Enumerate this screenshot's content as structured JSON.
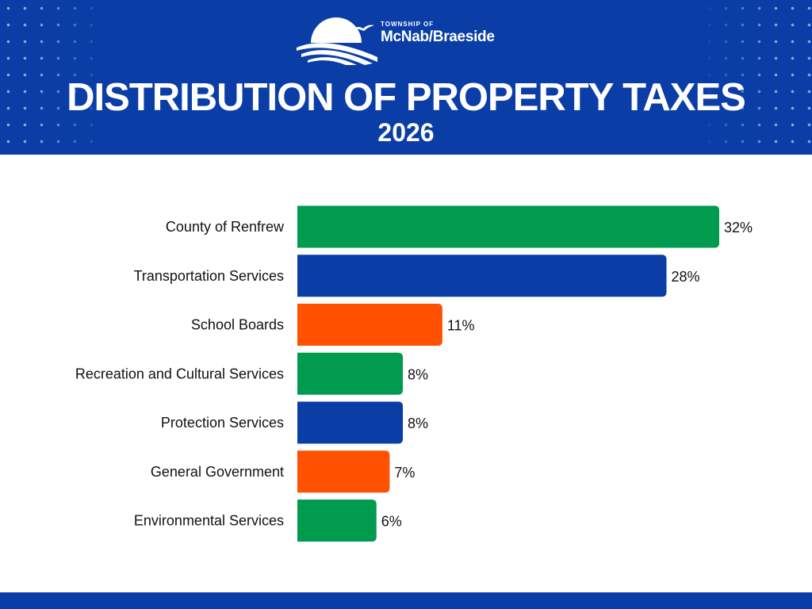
{
  "logo": {
    "small_text": "TOWNSHIP OF",
    "big_text": "McNab/Braeside"
  },
  "header": {
    "title": "DISTRIBUTION OF PROPERTY TAXES",
    "subtitle": "2026"
  },
  "colors": {
    "header_bg": "#0a3ea6",
    "green": "#009b4e",
    "blue": "#0a3ea6",
    "orange": "#ff5100"
  },
  "chart_data": {
    "type": "bar",
    "orientation": "horizontal",
    "title": "DISTRIBUTION OF PROPERTY TAXES",
    "subtitle": "2026",
    "categories": [
      "County of Renfrew",
      "Transportation Services",
      "School Boards",
      "Recreation and Cultural Services",
      "Protection Services",
      "General Government",
      "Environmental Services"
    ],
    "values": [
      32,
      28,
      11,
      8,
      8,
      7,
      6
    ],
    "value_labels": [
      "32%",
      "28%",
      "11%",
      "8%",
      "8%",
      "7%",
      "6%"
    ],
    "bar_colors": [
      "#009b4e",
      "#0a3ea6",
      "#ff5100",
      "#009b4e",
      "#0a3ea6",
      "#ff5100",
      "#009b4e"
    ],
    "unit": "%",
    "xlim": [
      0,
      32
    ],
    "grid": false,
    "legend": "none"
  }
}
